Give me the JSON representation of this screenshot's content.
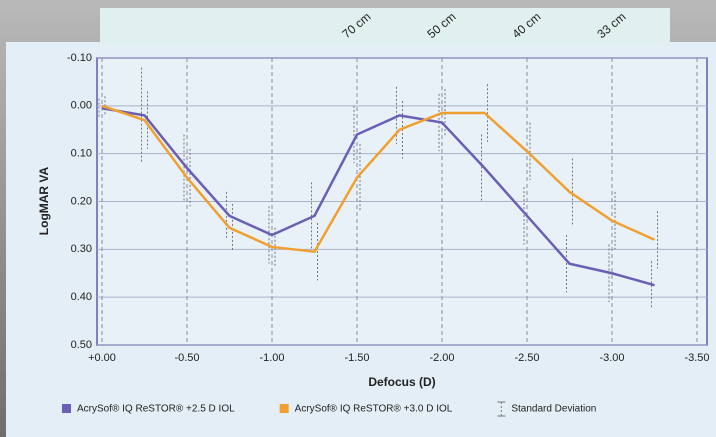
{
  "chart_data": {
    "type": "line",
    "x_label": "Defocus (D)",
    "y_label": "LogMAR VA",
    "x": [
      0,
      -0.25,
      -0.5,
      -0.75,
      -1,
      -1.25,
      -1.5,
      -1.75,
      -2,
      -2.25,
      -2.5,
      -2.75,
      -3,
      -3.25
    ],
    "series": [
      {
        "name": "AcrySof® IQ ReSTOR® +2.5 D IOL",
        "color": "#6a5fb5",
        "values": [
          0.005,
          0.02,
          0.13,
          0.23,
          0.27,
          0.23,
          0.06,
          0.02,
          0.035,
          0.13,
          0.23,
          0.33,
          0.35,
          0.375
        ],
        "errors": [
          0.02,
          0.1,
          0.07,
          0.05,
          0.06,
          0.07,
          0.06,
          0.06,
          0.06,
          0.07,
          0.06,
          0.06,
          0.06,
          0.05
        ]
      },
      {
        "name": "AcrySof® IQ ReSTOR® +3.0 D IOL",
        "color": "#f0a030",
        "values": [
          0.0,
          0.03,
          0.15,
          0.255,
          0.295,
          0.305,
          0.15,
          0.05,
          0.015,
          0.015,
          0.095,
          0.18,
          0.24,
          0.28
        ],
        "errors": [
          0.02,
          0.06,
          0.06,
          0.05,
          0.04,
          0.06,
          0.07,
          0.06,
          0.05,
          0.06,
          0.06,
          0.07,
          0.06,
          0.06
        ]
      }
    ],
    "error_label": "Standard Deviation",
    "annotations": [
      {
        "text": "70 cm",
        "x": -1.5
      },
      {
        "text": "50 cm",
        "x": -2
      },
      {
        "text": "40 cm",
        "x": -2.5
      },
      {
        "text": "33 cm",
        "x": -3
      }
    ],
    "xlim": [
      0,
      -3.5
    ],
    "xticks": [
      {
        "value": 0,
        "label": "+0.00"
      },
      {
        "value": -0.5,
        "label": "-0.50"
      },
      {
        "value": -1,
        "label": "-1.00"
      },
      {
        "value": -1.5,
        "label": "-1.50"
      },
      {
        "value": -2,
        "label": "-2.00"
      },
      {
        "value": -2.5,
        "label": "-2.50"
      },
      {
        "value": -3,
        "label": "-3.00"
      },
      {
        "value": -3.5,
        "label": "-3.50"
      }
    ],
    "ylim": [
      -0.1,
      0.5
    ],
    "yticks": [
      {
        "value": -0.1,
        "label": "-0.10"
      },
      {
        "value": 0,
        "label": "0.00"
      },
      {
        "value": 0.1,
        "label": "0.10"
      },
      {
        "value": 0.2,
        "label": "0.20"
      },
      {
        "value": 0.3,
        "label": "0.30"
      },
      {
        "value": 0.4,
        "label": "0.40"
      },
      {
        "value": 0.5,
        "label": "0.50"
      }
    ],
    "grid": true
  }
}
